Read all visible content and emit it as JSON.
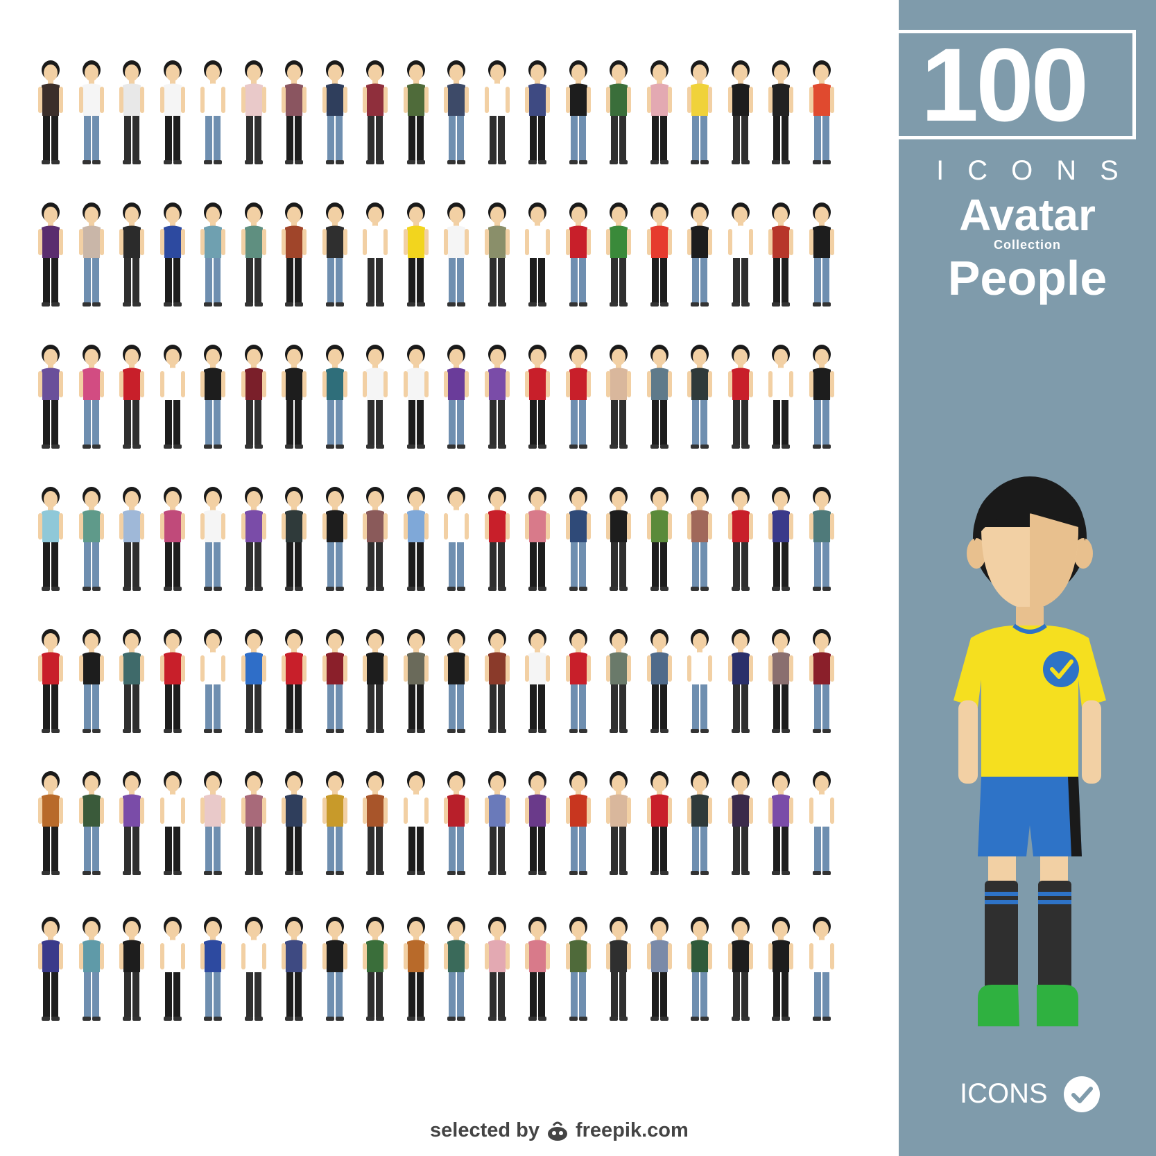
{
  "hero": {
    "count": "100",
    "icons_label": "ICONS",
    "title_line1": "Avatar",
    "title_line2": "Collection",
    "title_line3": "People"
  },
  "footer": {
    "icons_label": "ICONS",
    "check_icon": "checkmark-circle-icon"
  },
  "credit": {
    "prefix": "selected by",
    "brand": "freepik.com",
    "logo_icon": "freepik-bee-logo-icon"
  },
  "colors": {
    "panel": "#7f9bab",
    "skin": "#f2d0a4",
    "hair": "#1a1a1a",
    "jersey": "#f5df1f",
    "shorts": "#2e73c7",
    "boots": "#2fb140"
  },
  "avatars": [
    [
      "#3b2e2a",
      "#f5f5f5",
      "#e8e8e8",
      "#f5f5f5",
      "#ffffff",
      "#e9c9c9",
      "#8a5560",
      "#2f3e5c",
      "#8f2f3c",
      "#4f6b3a",
      "#3d4a68",
      "#ffffff",
      "#3e4a82",
      "#1d1d1d",
      "#3a6e3a",
      "#e3a9b2",
      "#f0d23a",
      "#1d1d1d",
      "#222222",
      "#e04a2f"
    ],
    [
      "#5a2d6e",
      "#c9b6a8",
      "#2b2b2b",
      "#2d4aa0",
      "#6fa0b0",
      "#5f8f80",
      "#a0452a",
      "#2f2f2f",
      "#ffffff",
      "#f2d51e",
      "#f5f5f5",
      "#8a8f6a",
      "#ffffff",
      "#c81f2a",
      "#3a8a3a",
      "#e63b2e",
      "#1d1d1d",
      "#ffffff",
      "#b7362a",
      "#1d1d1d"
    ],
    [
      "#6a4f9a",
      "#d24c82",
      "#c81f2a",
      "#ffffff",
      "#1d1d1d",
      "#7a1f2a",
      "#1d1d1d",
      "#2f6e7a",
      "#f5f5f5",
      "#f5f5f5",
      "#6a3c9a",
      "#7a4ca8",
      "#c81f2a",
      "#c81f2a",
      "#d9b79c",
      "#5f7a8a",
      "#2f3a3a",
      "#c81f2a",
      "#ffffff",
      "#1d1d1d"
    ],
    [
      "#8fc8d8",
      "#5f9a8a",
      "#9fb8d8",
      "#c04a7a",
      "#f5f5f5",
      "#7a4ca8",
      "#2f3a3a",
      "#1d1d1d",
      "#8a5a5a",
      "#7fa8d8",
      "#ffffff",
      "#c81f2a",
      "#d87a8a",
      "#2f4a78",
      "#1d1d1d",
      "#5a8a3a",
      "#a0685a",
      "#c81f2a",
      "#3a3a8a",
      "#4f7a7a"
    ],
    [
      "#c81f2a",
      "#1d1d1d",
      "#3f6a6a",
      "#c81f2a",
      "#ffffff",
      "#2f6ec8",
      "#c81f2a",
      "#8a1f2a",
      "#1d1d1d",
      "#6a6a5a",
      "#1d1d1d",
      "#8a3a2a",
      "#f5f5f5",
      "#c81f2a",
      "#6a7a6a",
      "#4f6a8a",
      "#ffffff",
      "#2a2f6a",
      "#8a6f6f",
      "#8a1f2a"
    ],
    [
      "#b86a2a",
      "#3a5a3a",
      "#7a4ca8",
      "#ffffff",
      "#e9c9c9",
      "#a86a7a",
      "#2f3e5c",
      "#c89a2a",
      "#a8552a",
      "#ffffff",
      "#b81f2a",
      "#6a7aba",
      "#6a3a8a",
      "#c8361f",
      "#d9b79c",
      "#c81f2a",
      "#2f3a3a",
      "#3a2a4a",
      "#7a4ca8",
      "#ffffff"
    ],
    [
      "#3a3a8a",
      "#5f9aa8",
      "#1d1d1d",
      "#ffffff",
      "#2d4aa0",
      "#ffffff",
      "#3e4a82",
      "#1d1d1d",
      "#3a6e3a",
      "#b86a2a",
      "#3a6a5a",
      "#e3a9b2",
      "#d87a8a",
      "#4f6a3a",
      "#2f2f2f",
      "#7a8aa8",
      "#2f5a3a",
      "#1d1d1d",
      "#1d1d1d",
      "#ffffff"
    ]
  ]
}
